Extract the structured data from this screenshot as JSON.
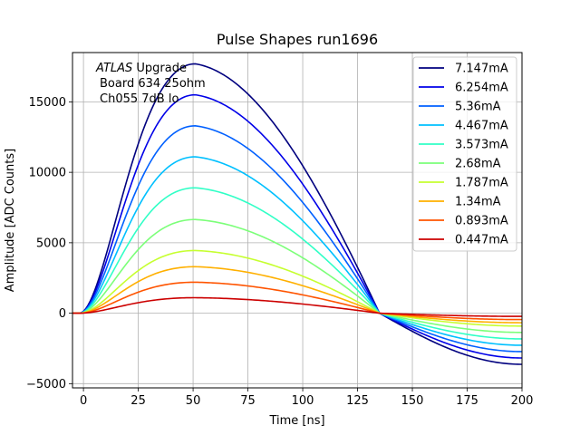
{
  "chart_data": {
    "type": "line",
    "title": "Pulse Shapes run1696",
    "xlabel": "Time [ns]",
    "ylabel": "Amplitude [ADC Counts]",
    "xlim": [
      -5,
      200
    ],
    "ylim": [
      -5300,
      18500
    ],
    "xticks": [
      0,
      25,
      50,
      75,
      100,
      125,
      150,
      175,
      200
    ],
    "xtick_labels": [
      "0",
      "25",
      "50",
      "75",
      "100",
      "125",
      "150",
      "175",
      "200"
    ],
    "yticks": [
      -5000,
      0,
      5000,
      10000,
      15000
    ],
    "ytick_labels": [
      "−5000",
      "0",
      "5000",
      "10000",
      "15000"
    ],
    "grid": true,
    "legend_position": "top-right",
    "annotation": {
      "italic": "ATLAS",
      "line1_rest": " Upgrade",
      "line2": "Board 634 25ohm",
      "line3": "Ch055 7dB lo"
    },
    "pulse_model": {
      "peak_time_ns": 51,
      "zero_crossing_ns": 135,
      "undershoot_at_200_ratio": -0.205
    },
    "series": [
      {
        "name": "7.147mA",
        "peak": 17700,
        "color": "#00007f"
      },
      {
        "name": "6.254mA",
        "peak": 15500,
        "color": "#0000e8"
      },
      {
        "name": "5.36mA",
        "peak": 13300,
        "color": "#0060ff"
      },
      {
        "name": "4.467mA",
        "peak": 11100,
        "color": "#00c0ff"
      },
      {
        "name": "3.573mA",
        "peak": 8900,
        "color": "#30ffc6"
      },
      {
        "name": "2.68mA",
        "peak": 6650,
        "color": "#7cff79"
      },
      {
        "name": "1.787mA",
        "peak": 4450,
        "color": "#c6ff30"
      },
      {
        "name": "1.34mA",
        "peak": 3300,
        "color": "#ffb000"
      },
      {
        "name": "0.893mA",
        "peak": 2200,
        "color": "#ff5400"
      },
      {
        "name": "0.447mA",
        "peak": 1100,
        "color": "#cc0000"
      }
    ]
  }
}
